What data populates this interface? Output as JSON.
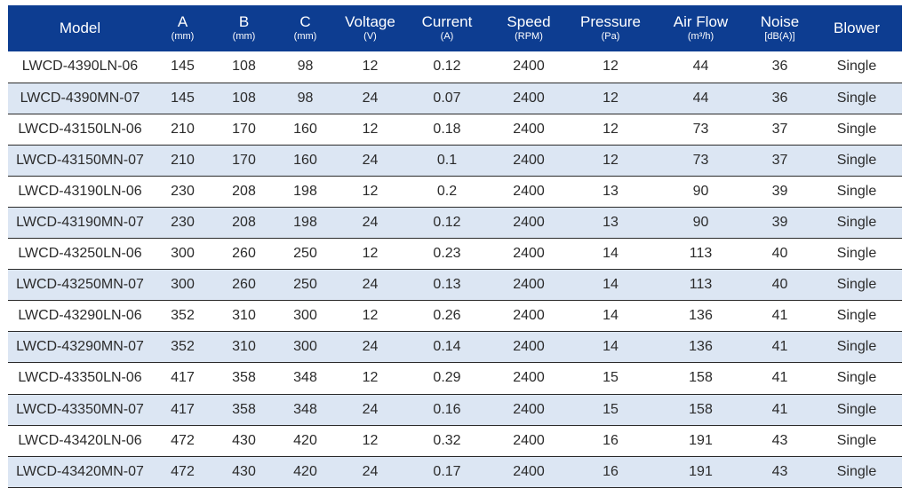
{
  "columns": [
    {
      "key": "model",
      "label": "Model",
      "unit": ""
    },
    {
      "key": "a",
      "label": "A",
      "unit": "(mm)"
    },
    {
      "key": "b",
      "label": "B",
      "unit": "(mm)"
    },
    {
      "key": "c",
      "label": "C",
      "unit": "(mm)"
    },
    {
      "key": "voltage",
      "label": "Voltage",
      "unit": "(V)"
    },
    {
      "key": "current",
      "label": "Current",
      "unit": "(A)"
    },
    {
      "key": "speed",
      "label": "Speed",
      "unit": "(RPM)"
    },
    {
      "key": "pressure",
      "label": "Pressure",
      "unit": "(Pa)"
    },
    {
      "key": "airflow",
      "label": "Air Flow",
      "unit": "(m³/h)"
    },
    {
      "key": "noise",
      "label": "Noise",
      "unit": "[dB(A)]"
    },
    {
      "key": "blower",
      "label": "Blower",
      "unit": ""
    }
  ],
  "rows": [
    [
      "LWCD-4390LN-06",
      "145",
      "108",
      "98",
      "12",
      "0.12",
      "2400",
      "12",
      "44",
      "36",
      "Single"
    ],
    [
      "LWCD-4390MN-07",
      "145",
      "108",
      "98",
      "24",
      "0.07",
      "2400",
      "12",
      "44",
      "36",
      "Single"
    ],
    [
      "LWCD-43150LN-06",
      "210",
      "170",
      "160",
      "12",
      "0.18",
      "2400",
      "12",
      "73",
      "37",
      "Single"
    ],
    [
      "LWCD-43150MN-07",
      "210",
      "170",
      "160",
      "24",
      "0.1",
      "2400",
      "12",
      "73",
      "37",
      "Single"
    ],
    [
      "LWCD-43190LN-06",
      "230",
      "208",
      "198",
      "12",
      "0.2",
      "2400",
      "13",
      "90",
      "39",
      "Single"
    ],
    [
      "LWCD-43190MN-07",
      "230",
      "208",
      "198",
      "24",
      "0.12",
      "2400",
      "13",
      "90",
      "39",
      "Single"
    ],
    [
      "LWCD-43250LN-06",
      "300",
      "260",
      "250",
      "12",
      "0.23",
      "2400",
      "14",
      "113",
      "40",
      "Single"
    ],
    [
      "LWCD-43250MN-07",
      "300",
      "260",
      "250",
      "24",
      "0.13",
      "2400",
      "14",
      "113",
      "40",
      "Single"
    ],
    [
      "LWCD-43290LN-06",
      "352",
      "310",
      "300",
      "12",
      "0.26",
      "2400",
      "14",
      "136",
      "41",
      "Single"
    ],
    [
      "LWCD-43290MN-07",
      "352",
      "310",
      "300",
      "24",
      "0.14",
      "2400",
      "14",
      "136",
      "41",
      "Single"
    ],
    [
      "LWCD-43350LN-06",
      "417",
      "358",
      "348",
      "12",
      "0.29",
      "2400",
      "15",
      "158",
      "41",
      "Single"
    ],
    [
      "LWCD-43350MN-07",
      "417",
      "358",
      "348",
      "24",
      "0.16",
      "2400",
      "15",
      "158",
      "41",
      "Single"
    ],
    [
      "LWCD-43420LN-06",
      "472",
      "430",
      "420",
      "12",
      "0.32",
      "2400",
      "16",
      "191",
      "43",
      "Single"
    ],
    [
      "LWCD-43420MN-07",
      "472",
      "430",
      "420",
      "24",
      "0.17",
      "2400",
      "16",
      "191",
      "43",
      "Single"
    ]
  ],
  "colors": {
    "header_bg": "#0d3d91",
    "header_text": "#ffffff",
    "stripe_bg": "#dce6f3",
    "row_bg": "#ffffff",
    "cell_text": "#2b2b2b"
  }
}
